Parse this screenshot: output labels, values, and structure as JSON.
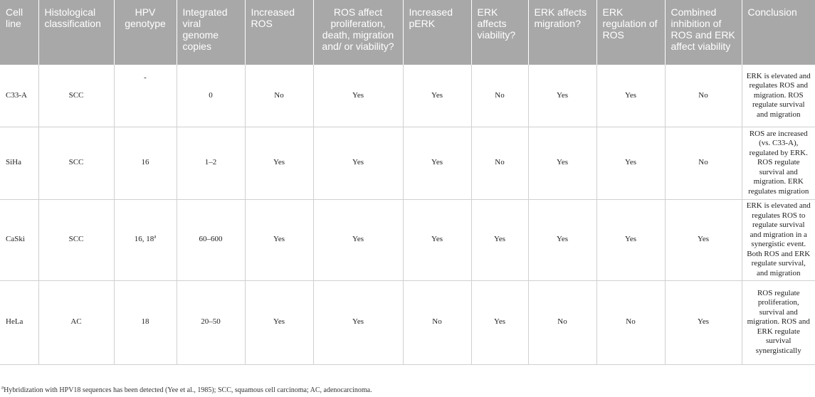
{
  "table": {
    "headers": [
      "Cell line",
      "Histological classification",
      "HPV genotype",
      "Integrated viral genome copies",
      "Increased ROS",
      "ROS affect proliferation, death, migration and/ or viability?",
      "Increased pERK",
      "ERK affects viability?",
      "ERK affects migration?",
      "ERK regulation of ROS",
      "Combined inhibition of ROS and ERK affect viability",
      "Conclusion"
    ],
    "rows": [
      {
        "cell_line": "C33-A",
        "histology": "SCC",
        "genotype": "-",
        "genotype_sup": "",
        "copies": "0",
        "increased_ros": "No",
        "ros_affect": "Yes",
        "increased_perk": "Yes",
        "erk_viability": "No",
        "erk_migration": "Yes",
        "erk_ros": "Yes",
        "combined": "No",
        "conclusion": "ERK is elevated and regulates ROS and migration. ROS regulate survival and migration"
      },
      {
        "cell_line": "SiHa",
        "histology": "SCC",
        "genotype": "16",
        "genotype_sup": "",
        "copies": "1–2",
        "increased_ros": "Yes",
        "ros_affect": "Yes",
        "increased_perk": "Yes",
        "erk_viability": "No",
        "erk_migration": "Yes",
        "erk_ros": "Yes",
        "combined": "No",
        "conclusion": "ROS are increased (vs. C33-A), regulated by ERK. ROS regulate survival and migration. ERK regulates migration"
      },
      {
        "cell_line": "CaSki",
        "histology": "SCC",
        "genotype": "16, 18",
        "genotype_sup": "a",
        "copies": "60–600",
        "increased_ros": "Yes",
        "ros_affect": "Yes",
        "increased_perk": "Yes",
        "erk_viability": "Yes",
        "erk_migration": "Yes",
        "erk_ros": "Yes",
        "combined": "Yes",
        "conclusion": "ERK is elevated and regulates ROS to regulate survival and migration in a synergistic event. Both ROS and ERK regulate survival, and migration"
      },
      {
        "cell_line": "HeLa",
        "histology": "AC",
        "genotype": "18",
        "genotype_sup": "",
        "copies": "20–50",
        "increased_ros": "Yes",
        "ros_affect": "Yes",
        "increased_perk": "No",
        "erk_viability": "Yes",
        "erk_migration": "No",
        "erk_ros": "No",
        "combined": "Yes",
        "conclusion": "ROS regulate proliferation, survival and migration. ROS and ERK regulate survival synergistically"
      }
    ]
  },
  "footnote": {
    "marker": "a",
    "text": "Hybridization with HPV18 sequences has been detected (Yee et al., 1985); SCC, squamous cell carcinoma; AC, adenocarcinoma."
  }
}
